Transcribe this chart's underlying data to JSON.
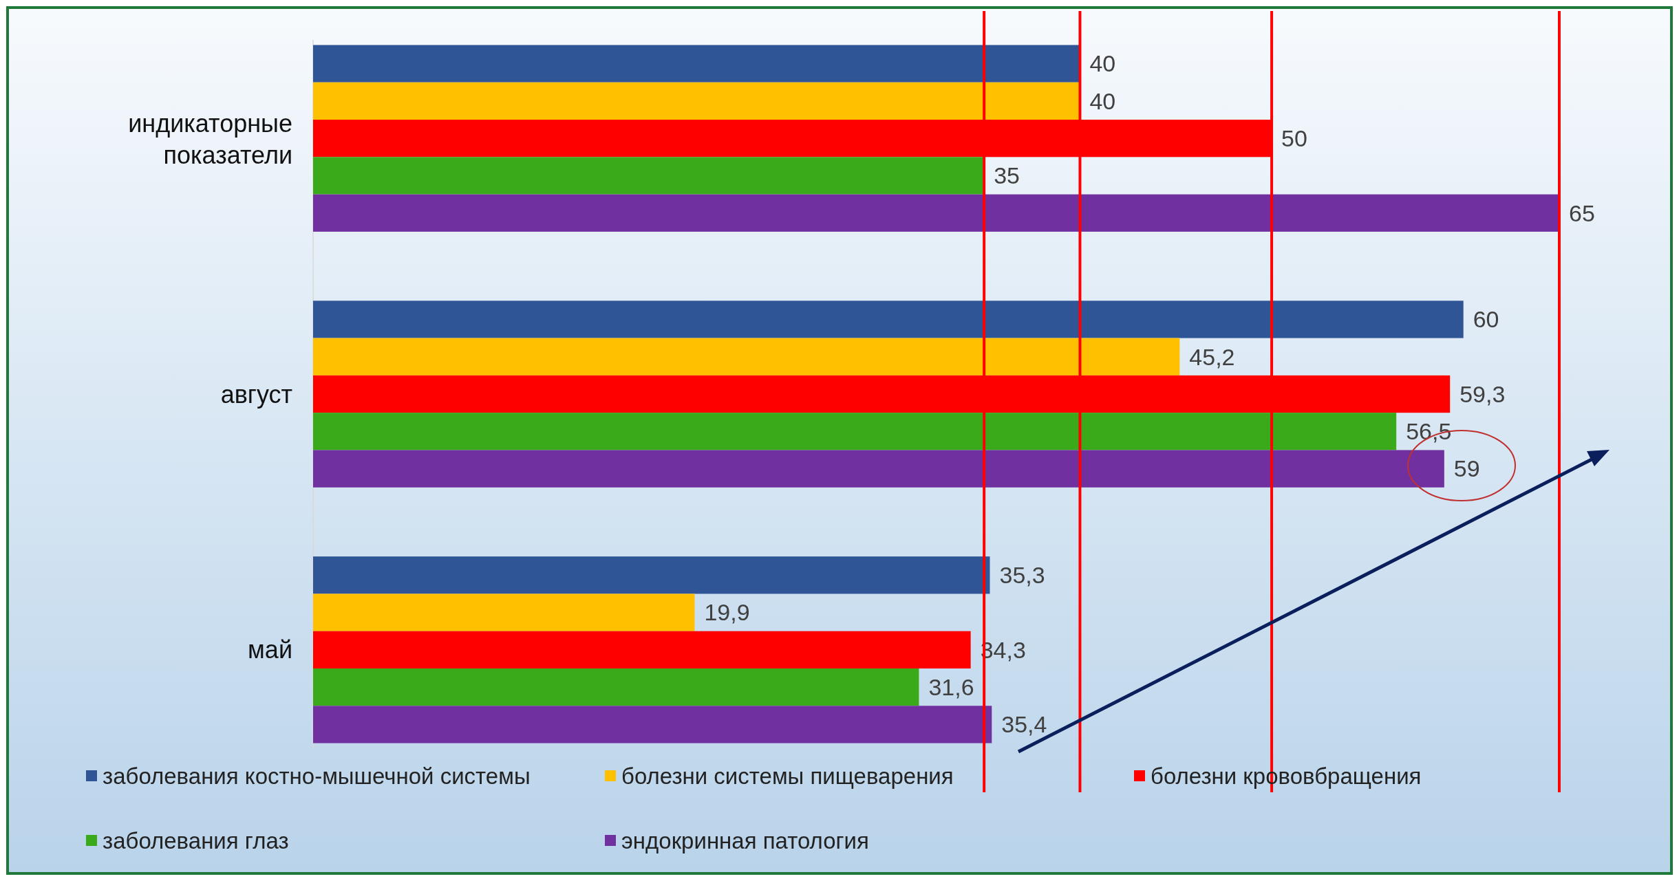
{
  "chart_data": {
    "type": "bar",
    "orientation": "horizontal",
    "categories": [
      "индикаторные показатели",
      "август",
      "май"
    ],
    "series": [
      {
        "name": "заболевания костно-мышечной системы",
        "color": "#2f5597",
        "values": [
          40,
          60,
          35.3
        ],
        "value_labels": [
          "40",
          "60",
          "35,3"
        ]
      },
      {
        "name": "болезни системы пищеварения",
        "color": "#ffc000",
        "values": [
          40,
          45.2,
          19.9
        ],
        "value_labels": [
          "40",
          "45,2",
          "19,9"
        ]
      },
      {
        "name": "болезни крововбращения",
        "color": "#ff0000",
        "values": [
          50,
          59.3,
          34.3
        ],
        "value_labels": [
          "50",
          "59,3",
          "34,3"
        ]
      },
      {
        "name": "заболевания глаз",
        "color": "#3aaa1a",
        "values": [
          35,
          56.5,
          31.6
        ],
        "value_labels": [
          "35",
          "56,5",
          "31,6"
        ]
      },
      {
        "name": "эндокринная патология",
        "color": "#7030a0",
        "values": [
          65,
          59,
          35.4
        ],
        "value_labels": [
          "65",
          "59",
          "35,4"
        ]
      }
    ],
    "tick_labels": "y",
    "legend": "bottom",
    "ref_lines": [
      {
        "axis": "x",
        "value": 35,
        "color": "#ff0000"
      },
      {
        "axis": "x",
        "value": 40,
        "color": "#ff0000"
      },
      {
        "axis": "x",
        "value": 50,
        "color": "#ff0000"
      },
      {
        "axis": "x",
        "value": 65,
        "color": "#ff0000"
      }
    ]
  }
}
